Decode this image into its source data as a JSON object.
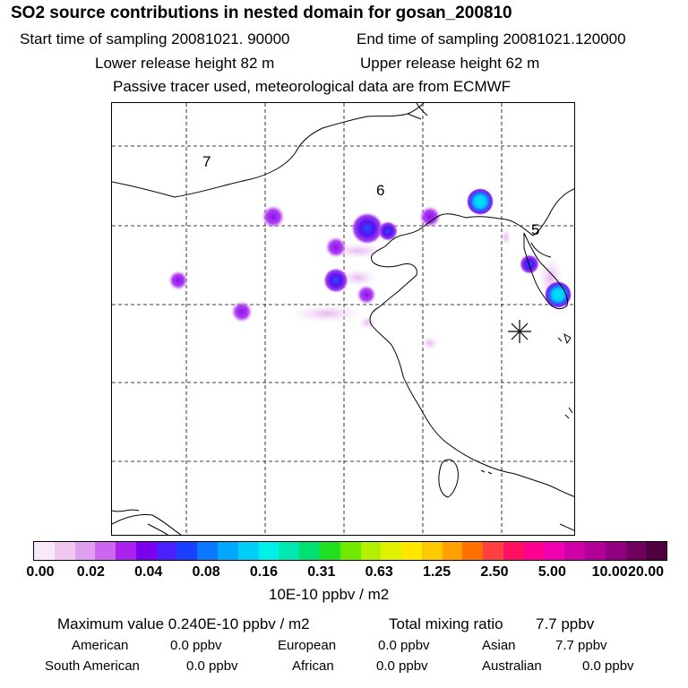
{
  "header": {
    "title": "SO2 source contributions in nested domain for gosan_200810",
    "start_label": "Start time of sampling 20081021. 90000",
    "end_label": "End time of sampling 20081021.120000",
    "lower_release": "Lower release height   82 m",
    "upper_release": "Upper release height   62 m",
    "tracer_note": "Passive tracer used, meteorological data are from ECMWF"
  },
  "map": {
    "region_labels": [
      "7",
      "6",
      "5"
    ],
    "receptor_marker": "asterisk-marker"
  },
  "colorbar": {
    "colors": [
      "#f8e8f8",
      "#f0c8f0",
      "#e0a0f0",
      "#cc66ee",
      "#aa22ee",
      "#7a00ee",
      "#4a20ff",
      "#1a40ff",
      "#0a78ff",
      "#00a8ff",
      "#00d0f8",
      "#00f0e8",
      "#00e8b0",
      "#00e070",
      "#20e020",
      "#70e800",
      "#b0f000",
      "#e0f000",
      "#ffe800",
      "#ffc800",
      "#ffa000",
      "#ff7000",
      "#ff4040",
      "#ff1060",
      "#ff0090",
      "#f000b0",
      "#d000a8",
      "#b00098",
      "#900080",
      "#700060",
      "#500040"
    ],
    "tick_labels": [
      "0.00",
      "0.02",
      "0.04",
      "0.08",
      "0.16",
      "0.31",
      "0.63",
      "1.25",
      "2.50",
      "5.00",
      "10.00",
      "20.00"
    ],
    "units": "10E-10 ppbv / m2"
  },
  "summary": {
    "max_value": "Maximum value  0.240E-10 ppbv / m2",
    "total_label": "Total mixing ratio",
    "total_value": "7.7 ppbv",
    "regions": [
      {
        "name": "American",
        "value": "0.0 ppbv"
      },
      {
        "name": "European",
        "value": "0.0 ppbv"
      },
      {
        "name": "Asian",
        "value": "7.7 ppbv"
      },
      {
        "name": "South American",
        "value": "0.0 ppbv"
      },
      {
        "name": "African",
        "value": "0.0 ppbv"
      },
      {
        "name": "Australian",
        "value": "0.0 ppbv"
      }
    ]
  }
}
